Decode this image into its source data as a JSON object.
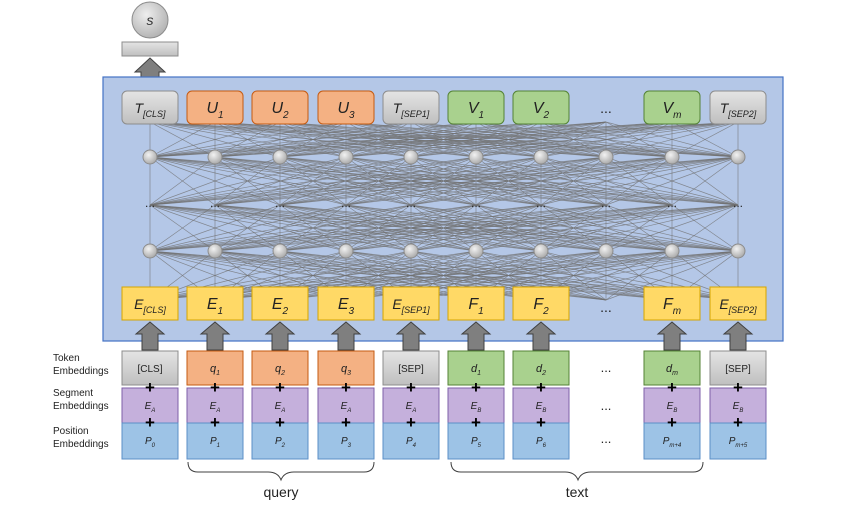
{
  "output": {
    "label": "s"
  },
  "colors": {
    "panel_fill": "#b4c7e7",
    "panel_stroke": "#4472c4",
    "gray_fill": "#d0d0d0",
    "gray_stroke": "#8c8c8c",
    "orange_fill": "#f4b183",
    "orange_stroke": "#c55a11",
    "green_fill": "#a9d18e",
    "green_stroke": "#548235",
    "yellow_fill": "#ffd966",
    "yellow_stroke": "#d6a500",
    "purple_fill": "#c5b0dc",
    "purple_stroke": "#7e5fa8",
    "blue_fill": "#9dc3e6",
    "blue_stroke": "#5b8fc7",
    "arrow_fill": "#7f7f7f",
    "arrow_stroke": "#404040",
    "node_fill": "#d9d9d9",
    "line": "#707070"
  },
  "top_tokens": [
    {
      "base": "T",
      "sub": "[CLS]",
      "color": "gray"
    },
    {
      "base": "U",
      "sub": "1",
      "color": "orange"
    },
    {
      "base": "U",
      "sub": "2",
      "color": "orange"
    },
    {
      "base": "U",
      "sub": "3",
      "color": "orange"
    },
    {
      "base": "T",
      "sub": "[SEP1]",
      "color": "gray"
    },
    {
      "base": "V",
      "sub": "1",
      "color": "green"
    },
    {
      "base": "V",
      "sub": "2",
      "color": "green"
    },
    {
      "base": "...",
      "sub": "",
      "color": "none"
    },
    {
      "base": "V",
      "sub": "m",
      "color": "green"
    },
    {
      "base": "T",
      "sub": "[SEP2]",
      "color": "gray"
    }
  ],
  "embed_tokens": [
    {
      "base": "E",
      "sub": "[CLS]"
    },
    {
      "base": "E",
      "sub": "1"
    },
    {
      "base": "E",
      "sub": "2"
    },
    {
      "base": "E",
      "sub": "3"
    },
    {
      "base": "E",
      "sub": "[SEP1]"
    },
    {
      "base": "F",
      "sub": "1"
    },
    {
      "base": "F",
      "sub": "2"
    },
    {
      "base": "...",
      "sub": ""
    },
    {
      "base": "F",
      "sub": "m"
    },
    {
      "base": "E",
      "sub": "[SEP2]"
    }
  ],
  "hidden_dots": "...",
  "row_labels": {
    "token": [
      "Token",
      "Embeddings"
    ],
    "segment": [
      "Segment",
      "Embeddings"
    ],
    "position": [
      "Position",
      "Embeddings"
    ]
  },
  "input_tokens": [
    {
      "base": "[CLS]",
      "sub": "",
      "color": "gray",
      "italic": false
    },
    {
      "base": "q",
      "sub": "1",
      "color": "orange",
      "italic": true
    },
    {
      "base": "q",
      "sub": "2",
      "color": "orange",
      "italic": true
    },
    {
      "base": "q",
      "sub": "3",
      "color": "orange",
      "italic": true
    },
    {
      "base": "[SEP]",
      "sub": "",
      "color": "gray",
      "italic": false
    },
    {
      "base": "d",
      "sub": "1",
      "color": "green",
      "italic": true
    },
    {
      "base": "d",
      "sub": "2",
      "color": "green",
      "italic": true
    },
    {
      "base": "...",
      "sub": "",
      "color": "none",
      "italic": false
    },
    {
      "base": "d",
      "sub": "m",
      "color": "green",
      "italic": true
    },
    {
      "base": "[SEP]",
      "sub": "",
      "color": "gray",
      "italic": false
    }
  ],
  "segments": [
    {
      "base": "E",
      "sub": "A"
    },
    {
      "base": "E",
      "sub": "A"
    },
    {
      "base": "E",
      "sub": "A"
    },
    {
      "base": "E",
      "sub": "A"
    },
    {
      "base": "E",
      "sub": "A"
    },
    {
      "base": "E",
      "sub": "B"
    },
    {
      "base": "E",
      "sub": "B"
    },
    {
      "base": "...",
      "sub": ""
    },
    {
      "base": "E",
      "sub": "B"
    },
    {
      "base": "E",
      "sub": "B"
    }
  ],
  "positions": [
    {
      "base": "P",
      "sub": "0"
    },
    {
      "base": "P",
      "sub": "1"
    },
    {
      "base": "P",
      "sub": "2"
    },
    {
      "base": "P",
      "sub": "3"
    },
    {
      "base": "P",
      "sub": "4"
    },
    {
      "base": "P",
      "sub": "5"
    },
    {
      "base": "P",
      "sub": "6"
    },
    {
      "base": "...",
      "sub": ""
    },
    {
      "base": "P",
      "sub": "m+4"
    },
    {
      "base": "P",
      "sub": "m+5"
    }
  ],
  "plus": "+",
  "groups": {
    "query": "query",
    "text": "text"
  }
}
